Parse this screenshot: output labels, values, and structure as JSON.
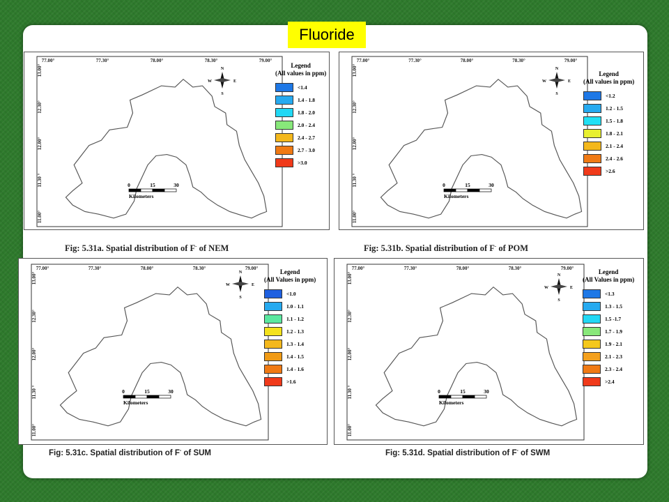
{
  "title": "Fluoride",
  "panels": [
    {
      "id": "a",
      "caption_prefix": "Fig: 5.31a. Spatial distribution  of F",
      "caption_sup": "-",
      "caption_suffix": " of NEM",
      "legend_title": "Legend",
      "legend_subtitle": "(All values in ppm)",
      "legend": [
        {
          "label": "<1.4",
          "color": "#1e78e6"
        },
        {
          "label": "1.4 - 1.8",
          "color": "#26aaf0"
        },
        {
          "label": "1.8 - 2.0",
          "color": "#22d8f4"
        },
        {
          "label": "2.0 - 2.4",
          "color": "#88e87a"
        },
        {
          "label": "2.4 - 2.7",
          "color": "#f4b81c"
        },
        {
          "label": "2.7 - 3.0",
          "color": "#f07a14"
        },
        {
          "label": ">3.0",
          "color": "#f03a1a"
        }
      ]
    },
    {
      "id": "b",
      "caption_prefix": "Fig: 5.31b. Spatial distribution  of F",
      "caption_sup": "-",
      "caption_suffix": " of POM",
      "legend_title": "Legend",
      "legend_subtitle": "(All values in ppm)",
      "legend": [
        {
          "label": "<1.2",
          "color": "#1e78e6"
        },
        {
          "label": "1.2 - 1.5",
          "color": "#26aaf0"
        },
        {
          "label": "1.5 - 1.8",
          "color": "#22e0f4"
        },
        {
          "label": "1.8 - 2.1",
          "color": "#e8f030"
        },
        {
          "label": "2.1 - 2.4",
          "color": "#f4b81c"
        },
        {
          "label": "2.4 - 2.6",
          "color": "#f07a14"
        },
        {
          "label": ">2.6",
          "color": "#f03a1a"
        }
      ]
    },
    {
      "id": "c",
      "caption_prefix": "Fig: 5.31c. Spatial distribution of F",
      "caption_sup": "-",
      "caption_suffix": " of SUM",
      "legend_title": "Legend",
      "legend_subtitle": "(All Values in ppm)",
      "legend": [
        {
          "label": "<1.0",
          "color": "#1e60e0"
        },
        {
          "label": "1.0 - 1.1",
          "color": "#26aaf0"
        },
        {
          "label": "1.1 - 1.2",
          "color": "#5ae8a0"
        },
        {
          "label": "1.2 - 1.3",
          "color": "#f4e21c"
        },
        {
          "label": "1.3 - 1.4",
          "color": "#f4b81c"
        },
        {
          "label": "1.4 - 1.5",
          "color": "#f09a14"
        },
        {
          "label": "1.4 - 1.6",
          "color": "#f07a14"
        },
        {
          "label": ">1.6",
          "color": "#f03a1a"
        }
      ]
    },
    {
      "id": "d",
      "caption_prefix": "Fig: 5.31d. Spatial distribution of F",
      "caption_sup": "-",
      "caption_suffix": " of SWM",
      "legend_title": "Legend",
      "legend_subtitle": "(All Values in ppm)",
      "legend": [
        {
          "label": "<1.3",
          "color": "#1e78e6"
        },
        {
          "label": "1.3 - 1.5",
          "color": "#26aaf0"
        },
        {
          "label": "1.5 -1.7",
          "color": "#22d8f4"
        },
        {
          "label": "1.7 - 1.9",
          "color": "#88e87a"
        },
        {
          "label": "1.9 - 2.1",
          "color": "#f4c81c"
        },
        {
          "label": "2.1 - 2.3",
          "color": "#f4a01c"
        },
        {
          "label": "2.3 - 2.4",
          "color": "#f07a14"
        },
        {
          "label": ">2.4",
          "color": "#f03a1a"
        }
      ]
    }
  ],
  "lon_ticks": [
    "77.00°",
    "77.30°",
    "78.00°",
    "78.30°",
    "79.00°"
  ],
  "lat_ticks": [
    "13.00°",
    "12.30°",
    "12.00°",
    "11.30 °",
    "11.00°"
  ],
  "scale": {
    "ticks": [
      "0",
      "15",
      "30"
    ],
    "unit": "Kilometers"
  },
  "north": {
    "n": "N",
    "s": "S",
    "e": "E",
    "w": "W"
  }
}
